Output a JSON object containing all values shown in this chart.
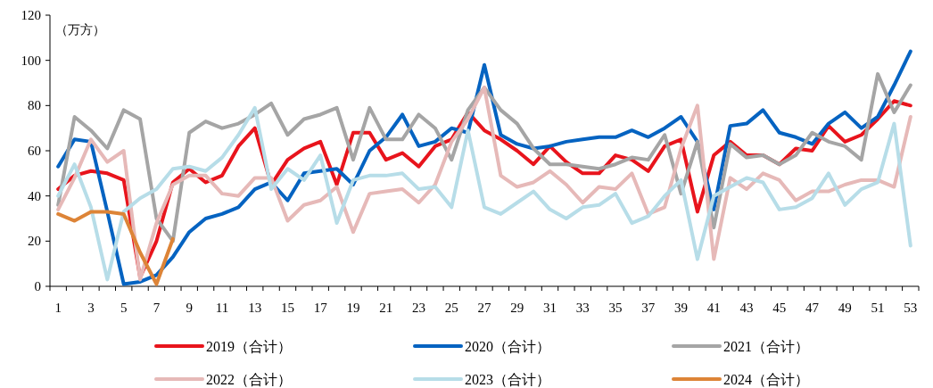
{
  "chart_data": {
    "type": "line",
    "ylabel": "（万方）",
    "categories": [
      "1",
      null,
      "3",
      null,
      "5",
      null,
      "7",
      null,
      "9",
      null,
      "11",
      null,
      "13",
      null,
      "15",
      null,
      "17",
      null,
      "19",
      null,
      "21",
      null,
      "23",
      null,
      "25",
      null,
      "27",
      null,
      "29",
      null,
      "31",
      null,
      "33",
      null,
      "35",
      null,
      "37",
      null,
      "39",
      null,
      "41",
      null,
      "43",
      null,
      "45",
      null,
      "47",
      null,
      "49",
      null,
      "51",
      null,
      "53"
    ],
    "ylim": [
      0,
      120
    ],
    "yticks": [
      0,
      20,
      40,
      60,
      80,
      100,
      120
    ],
    "grid": false,
    "legend": "bottom",
    "marker": "none",
    "line_style": "solid",
    "series": [
      {
        "name": "2019（合计）",
        "color": "#e8141c",
        "values": [
          43,
          49,
          51,
          50,
          47,
          4,
          20,
          46,
          52,
          46,
          49,
          62,
          70,
          45,
          56,
          61,
          64,
          45,
          68,
          68,
          56,
          59,
          53,
          62,
          65,
          77,
          69,
          65,
          60,
          54,
          62,
          55,
          50,
          50,
          58,
          56,
          51,
          62,
          65,
          33,
          58,
          64,
          58,
          58,
          54,
          61,
          60,
          71,
          64,
          67,
          74,
          82,
          80
        ]
      },
      {
        "name": "2020（合计）",
        "color": "#0563c1",
        "values": [
          53,
          65,
          64,
          33,
          1,
          2,
          5,
          13,
          24,
          30,
          32,
          35,
          43,
          46,
          38,
          50,
          51,
          52,
          45,
          60,
          66,
          76,
          62,
          64,
          70,
          68,
          98,
          67,
          63,
          61,
          62,
          64,
          65,
          66,
          66,
          69,
          66,
          70,
          75,
          64,
          34,
          71,
          72,
          78,
          68,
          66,
          63,
          72,
          77,
          70,
          75,
          89,
          104
        ]
      },
      {
        "name": "2021（合计）",
        "color": "#a5a5a5",
        "values": [
          36,
          75,
          69,
          61,
          78,
          74,
          30,
          20,
          68,
          73,
          70,
          72,
          76,
          81,
          67,
          74,
          76,
          79,
          56,
          79,
          65,
          65,
          76,
          70,
          56,
          78,
          88,
          78,
          72,
          61,
          54,
          54,
          53,
          52,
          54,
          57,
          56,
          67,
          41,
          64,
          26,
          63,
          57,
          58,
          54,
          58,
          68,
          64,
          62,
          56,
          94,
          77,
          89
        ]
      },
      {
        "name": "2022（合计）",
        "color": "#e6b9b8",
        "values": [
          34,
          48,
          65,
          55,
          60,
          3,
          28,
          45,
          49,
          49,
          41,
          40,
          48,
          48,
          29,
          36,
          38,
          44,
          24,
          41,
          42,
          43,
          37,
          45,
          64,
          74,
          88,
          49,
          44,
          46,
          51,
          45,
          37,
          44,
          43,
          50,
          32,
          35,
          61,
          80,
          12,
          48,
          43,
          50,
          47,
          38,
          42,
          42,
          45,
          47,
          47,
          44,
          75
        ]
      },
      {
        "name": "2023（合计）",
        "color": "#b7dde8",
        "values": [
          40,
          54,
          35,
          3,
          33,
          39,
          43,
          52,
          53,
          51,
          57,
          67,
          79,
          43,
          52,
          47,
          58,
          28,
          47,
          49,
          49,
          50,
          43,
          44,
          35,
          69,
          35,
          32,
          37,
          42,
          34,
          30,
          35,
          36,
          41,
          28,
          31,
          40,
          47,
          12,
          40,
          44,
          48,
          46,
          34,
          35,
          39,
          50,
          36,
          43,
          46,
          72,
          18
        ]
      },
      {
        "name": "2024（合计）",
        "color": "#dd8437",
        "values": [
          32,
          29,
          33,
          33,
          32,
          15,
          1,
          21,
          null,
          null,
          null,
          null,
          null,
          null,
          null,
          null,
          null,
          null,
          null,
          null,
          null,
          null,
          null,
          null,
          null,
          null,
          null,
          null,
          null,
          null,
          null,
          null,
          null,
          null,
          null,
          null,
          null,
          null,
          null,
          null,
          null,
          null,
          null,
          null,
          null,
          null,
          null,
          null,
          null,
          null,
          null,
          null,
          null
        ]
      }
    ]
  }
}
